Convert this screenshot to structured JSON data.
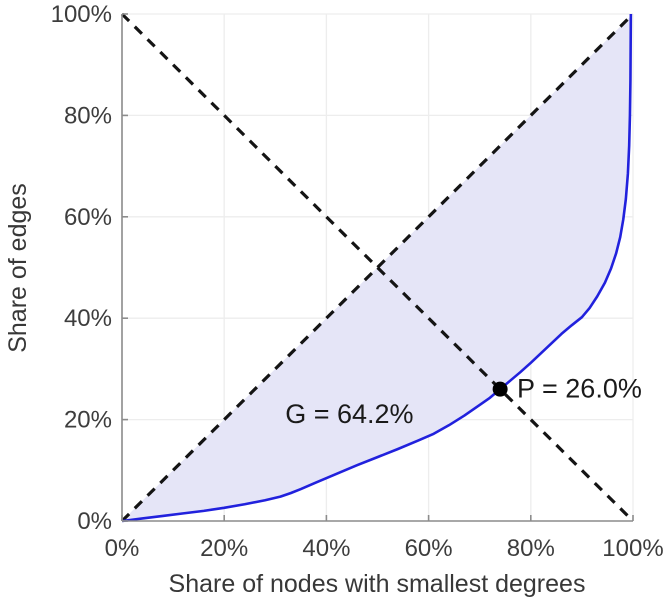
{
  "figure": {
    "background": "#ffffff"
  },
  "chart_data": {
    "type": "line",
    "title": "",
    "xlabel": "Share of nodes with smallest degrees",
    "ylabel": "Share of edges",
    "xlim": [
      0,
      100
    ],
    "ylim": [
      0,
      100
    ],
    "grid": true,
    "legend": "none",
    "x_ticks": [
      0,
      20,
      40,
      60,
      80,
      100
    ],
    "y_ticks": [
      0,
      20,
      40,
      60,
      80,
      100
    ],
    "x_tick_labels": [
      "0%",
      "20%",
      "40%",
      "60%",
      "80%",
      "100%"
    ],
    "y_tick_labels": [
      "0%",
      "20%",
      "40%",
      "60%",
      "80%",
      "100%"
    ],
    "series": [
      {
        "name": "equality-diagonal",
        "description": "dashed line of equality y = x",
        "color": "#141414",
        "width": 3.2,
        "dash": "10 8",
        "points": [
          [
            0,
            0
          ],
          [
            100,
            100
          ]
        ]
      },
      {
        "name": "anti-diagonal",
        "description": "dashed line y = 100 - x used to locate P",
        "color": "#141414",
        "width": 3.2,
        "dash": "10 8",
        "points": [
          [
            0,
            100
          ],
          [
            100,
            0
          ]
        ]
      },
      {
        "name": "lorenz-curve",
        "description": "cumulative share of edges vs share of nodes with smallest degrees",
        "color": "#2121dd",
        "width": 2.6,
        "dash": "",
        "points": [
          [
            0,
            0
          ],
          [
            4,
            0.5
          ],
          [
            8,
            1.0
          ],
          [
            12,
            1.5
          ],
          [
            16,
            2.0
          ],
          [
            20,
            2.6
          ],
          [
            24,
            3.3
          ],
          [
            28,
            4.1
          ],
          [
            31,
            4.8
          ],
          [
            33,
            5.5
          ],
          [
            35,
            6.3
          ],
          [
            38,
            7.6
          ],
          [
            42,
            9.3
          ],
          [
            46,
            11.0
          ],
          [
            50,
            12.6
          ],
          [
            54,
            14.2
          ],
          [
            58,
            15.9
          ],
          [
            61,
            17.2
          ],
          [
            64,
            18.9
          ],
          [
            67,
            20.8
          ],
          [
            70,
            22.9
          ],
          [
            72,
            24.3
          ],
          [
            74,
            26.0
          ],
          [
            76,
            27.7
          ],
          [
            78,
            29.4
          ],
          [
            80,
            31.2
          ],
          [
            82,
            33.1
          ],
          [
            84,
            35.0
          ],
          [
            86,
            36.9
          ],
          [
            88,
            38.6
          ],
          [
            90,
            40.2
          ],
          [
            91.5,
            42.0
          ],
          [
            93,
            44.3
          ],
          [
            94.5,
            47.0
          ],
          [
            95.7,
            49.8
          ],
          [
            96.7,
            52.8
          ],
          [
            97.5,
            56.0
          ],
          [
            98.1,
            59.5
          ],
          [
            98.6,
            63.5
          ],
          [
            99.0,
            68.5
          ],
          [
            99.25,
            74.0
          ],
          [
            99.4,
            80.0
          ],
          [
            99.5,
            87.0
          ],
          [
            99.58,
            100
          ]
        ]
      }
    ],
    "fill_between": {
      "name": "gini-area",
      "upper": "equality-diagonal",
      "lower": "lorenz-curve",
      "color": "#e5e5f7"
    },
    "point_marker": {
      "name": "P-point",
      "x": 74,
      "y": 26,
      "radius": 7.5,
      "color": "#000000"
    },
    "annotations": {
      "gini": {
        "text": "G = 64.2%",
        "x": 44.5,
        "y": 19.3,
        "anchor": "middle"
      },
      "p": {
        "text": "P = 26.0%",
        "x": 77.3,
        "y": 24.4,
        "anchor": "start"
      }
    },
    "style": {
      "grid_color": "#ededed",
      "axis_color": "#8c8c8c",
      "tick_label_color": "#3d3d3d",
      "axis_title_color": "#383838",
      "annotation_color": "#1a1a1a",
      "curve_color": "#2121dd",
      "dashed_color": "#141414",
      "fill_color": "#e5e5f7"
    }
  }
}
